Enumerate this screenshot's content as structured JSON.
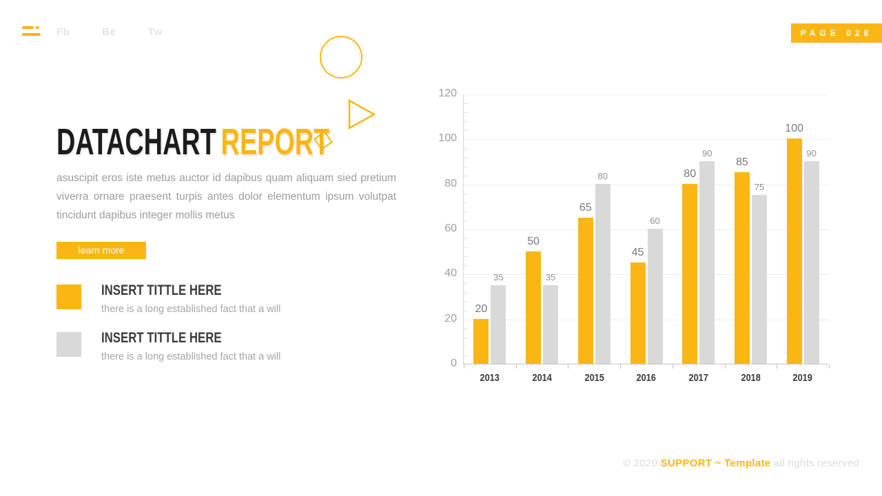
{
  "topbar": {
    "menu_icon": "hamburger-icon",
    "social_links": [
      {
        "label": "Fb"
      },
      {
        "label": "Be"
      },
      {
        "label": "Tw"
      }
    ],
    "page_badge": "PAGE 028"
  },
  "decor": {
    "shapes": [
      "circle-outline",
      "triangle-outline",
      "diamond-outline"
    ]
  },
  "hero": {
    "title_primary": "DATACHART",
    "title_accent": "REPORT",
    "paragraph": "asuscipit eros iste metus auctor id dapibus quam aliquam sied pretium viverra ornare praesent turpis antes dolor elementum ipsum volutpat tincidunt dapibus integer mollis metus",
    "cta_label": "learn more"
  },
  "features": [
    {
      "title": "INSERT TITTLE HERE",
      "description": "there is a long established fact that a will",
      "swatch": "#FBB614"
    },
    {
      "title": "INSERT TITTLE HERE",
      "description": "there is a long established fact that a will",
      "swatch": "#D9D9D9"
    }
  ],
  "footer": {
    "copyright": "© 2020",
    "brand": "SUPPORT ~ Template",
    "rights": "all rights reserved"
  },
  "colors": {
    "accent": "#FBB614",
    "bar_gray": "#D9D9D9",
    "text_dark": "#1C1C1C",
    "text_gray": "#9C9C9C",
    "grid": "#ECECEC",
    "axis": "#C4C4C4"
  },
  "chart_data": {
    "type": "bar",
    "title": "",
    "categories": [
      "2013",
      "2014",
      "2015",
      "2016",
      "2017",
      "2018",
      "2019"
    ],
    "series": [
      {
        "name": "series-yellow",
        "color": "#FBB614",
        "values": [
          20,
          50,
          65,
          45,
          80,
          85,
          100
        ]
      },
      {
        "name": "series-gray",
        "color": "#D9D9D9",
        "values": [
          35,
          35,
          80,
          60,
          90,
          75,
          90
        ]
      }
    ],
    "xlabel": "",
    "ylabel": "",
    "ylim": [
      0,
      120
    ],
    "yticks": [
      0,
      20,
      40,
      60,
      80,
      100,
      120
    ],
    "minor_tick_step": 4,
    "grid": true,
    "legend_position": "none",
    "data_labels": true
  }
}
